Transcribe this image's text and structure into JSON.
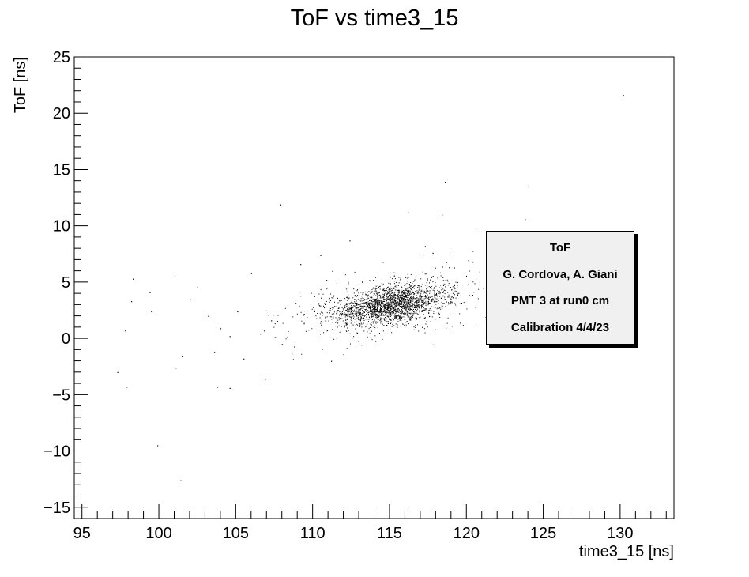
{
  "chart_data": {
    "type": "scatter",
    "title": "ToF vs time3_15",
    "xlabel": "time3_15 [ns]",
    "ylabel": "ToF [ns]",
    "xlim": [
      94.5,
      133.5
    ],
    "ylim": [
      -16,
      25
    ],
    "xticks": [
      95,
      100,
      105,
      110,
      115,
      120,
      125,
      130
    ],
    "yticks": [
      -15,
      -10,
      -5,
      0,
      5,
      10,
      15,
      20,
      25
    ],
    "grid": false,
    "legend_placement": "right",
    "marker_color": "#000000",
    "cluster": {
      "center": [
        115.0,
        3.0
      ],
      "spread": [
        1.8,
        0.8
      ],
      "approx_points": 2500
    },
    "outliers": [
      {
        "x": 130.2,
        "y": 21.6
      },
      {
        "x": 124.0,
        "y": 13.5
      },
      {
        "x": 118.6,
        "y": 13.9
      },
      {
        "x": 123.8,
        "y": 10.6
      },
      {
        "x": 120.6,
        "y": 9.8
      },
      {
        "x": 116.2,
        "y": 11.2
      },
      {
        "x": 107.9,
        "y": 11.9
      },
      {
        "x": 118.4,
        "y": 11.0
      },
      {
        "x": 112.4,
        "y": 8.7
      },
      {
        "x": 98.3,
        "y": 5.3
      },
      {
        "x": 98.2,
        "y": 3.3
      },
      {
        "x": 99.5,
        "y": 2.4
      },
      {
        "x": 99.4,
        "y": 4.1
      },
      {
        "x": 97.8,
        "y": 0.7
      },
      {
        "x": 97.3,
        "y": -3.0
      },
      {
        "x": 97.9,
        "y": -4.3
      },
      {
        "x": 101.1,
        "y": -2.6
      },
      {
        "x": 101.5,
        "y": -1.6
      },
      {
        "x": 99.9,
        "y": -9.5
      },
      {
        "x": 101.4,
        "y": -12.6
      },
      {
        "x": 103.8,
        "y": -4.3
      },
      {
        "x": 104.6,
        "y": -4.4
      },
      {
        "x": 103.6,
        "y": -1.2
      },
      {
        "x": 104.0,
        "y": 0.9
      },
      {
        "x": 105.1,
        "y": 2.4
      },
      {
        "x": 102.5,
        "y": 4.6
      },
      {
        "x": 101.0,
        "y": 5.5
      },
      {
        "x": 103.2,
        "y": 2.0
      },
      {
        "x": 105.5,
        "y": -1.8
      },
      {
        "x": 106.9,
        "y": -3.6
      },
      {
        "x": 106.0,
        "y": 5.8
      },
      {
        "x": 107.3,
        "y": 1.6
      },
      {
        "x": 108.0,
        "y": -0.5
      },
      {
        "x": 109.2,
        "y": 6.6
      },
      {
        "x": 110.5,
        "y": 7.4
      },
      {
        "x": 111.2,
        "y": -2.0
      },
      {
        "x": 112.0,
        "y": -1.4
      },
      {
        "x": 119.4,
        "y": 5.0
      },
      {
        "x": 120.4,
        "y": 6.8
      },
      {
        "x": 119.2,
        "y": 6.3
      },
      {
        "x": 117.8,
        "y": 7.6
      },
      {
        "x": 117.3,
        "y": 8.2
      },
      {
        "x": 120.0,
        "y": 5.5
      },
      {
        "x": 102.0,
        "y": 3.5
      },
      {
        "x": 104.6,
        "y": 0.2
      }
    ],
    "annotations": [
      "ToF",
      "G. Cordova, A. Giani",
      "PMT 3 at run0 cm",
      "Calibration 4/4/23"
    ]
  }
}
